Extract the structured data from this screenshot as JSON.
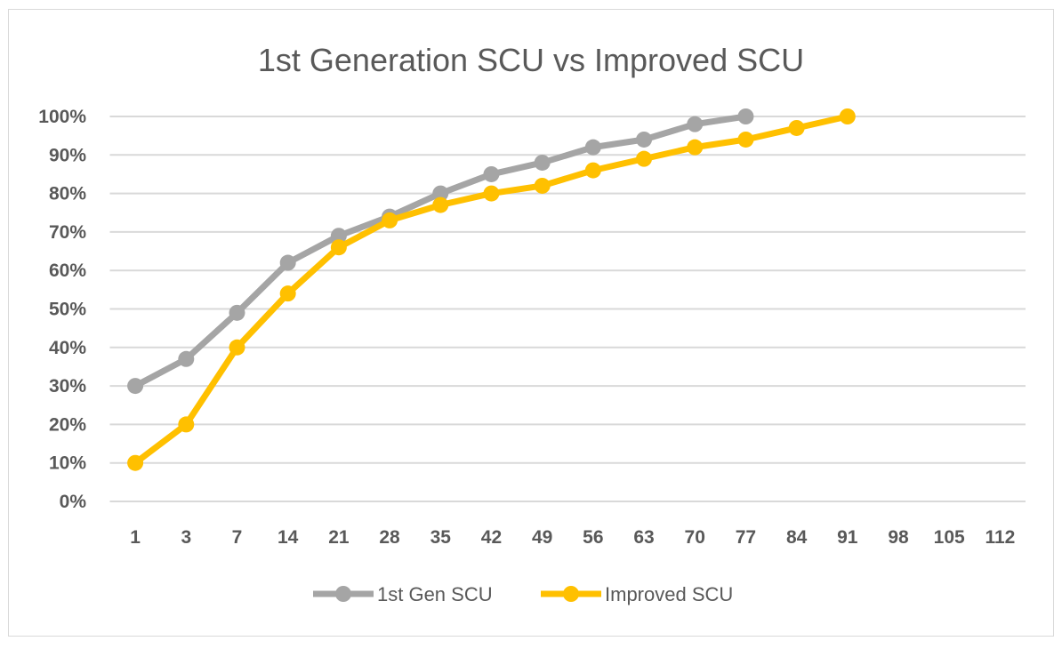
{
  "chart_data": {
    "type": "line",
    "title": "1st Generation SCU vs Improved SCU",
    "xlabel": "",
    "ylabel": "",
    "categories": [
      "1",
      "3",
      "7",
      "14",
      "21",
      "28",
      "35",
      "42",
      "49",
      "56",
      "63",
      "70",
      "77",
      "84",
      "91",
      "98",
      "105",
      "112"
    ],
    "yticks": [
      "0%",
      "10%",
      "20%",
      "30%",
      "40%",
      "50%",
      "60%",
      "70%",
      "80%",
      "90%",
      "100%"
    ],
    "ylim": [
      0,
      100
    ],
    "grid": true,
    "legend_position": "bottom",
    "series": [
      {
        "name": "1st Gen SCU",
        "color": "#A5A5A5",
        "values": [
          30,
          37,
          49,
          62,
          69,
          74,
          80,
          85,
          88,
          92,
          94,
          98,
          100,
          null,
          null,
          null,
          null,
          null
        ]
      },
      {
        "name": "Improved SCU",
        "color": "#FFC000",
        "values": [
          10,
          20,
          40,
          54,
          66,
          73,
          77,
          80,
          82,
          86,
          89,
          92,
          94,
          97,
          100,
          null,
          null,
          null
        ]
      }
    ]
  }
}
